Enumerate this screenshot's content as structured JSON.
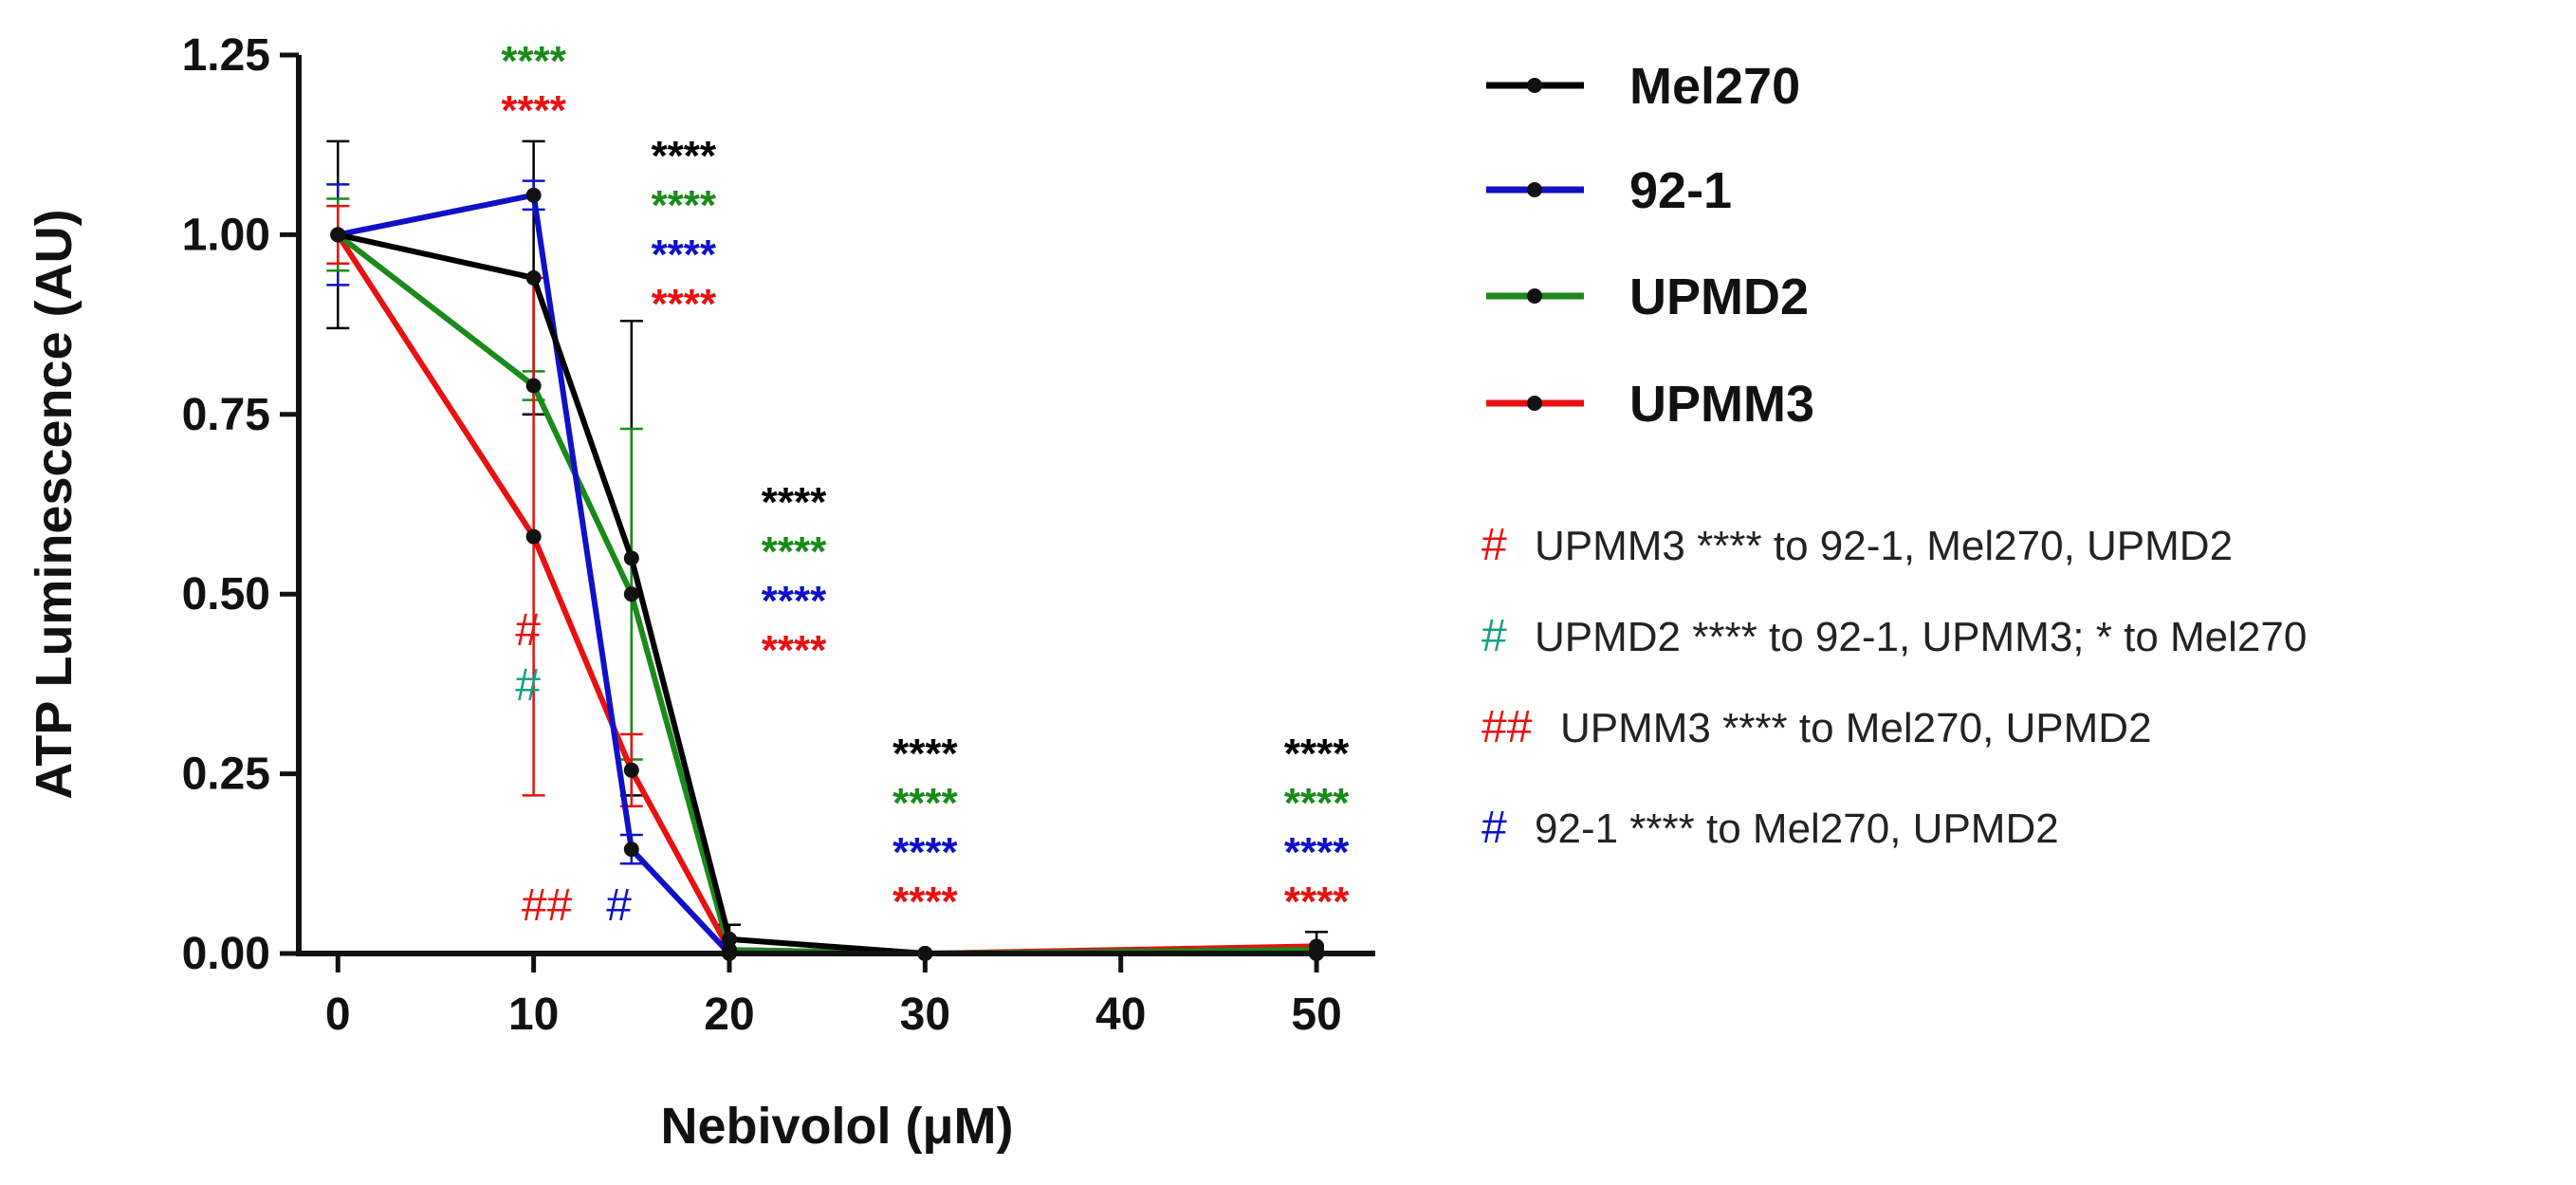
{
  "chart_data": {
    "type": "line",
    "xlabel": "Nebivolol (μM)",
    "ylabel": "ATP Luminescence (AU)",
    "x": [
      0,
      10,
      15,
      20,
      30,
      50
    ],
    "xticks": [
      0,
      10,
      20,
      30,
      40,
      50
    ],
    "yticks": [
      "0.00",
      "0.25",
      "0.50",
      "0.75",
      "1.00",
      "1.25"
    ],
    "xlim": [
      -2,
      53
    ],
    "ylim": [
      0,
      1.25
    ],
    "legend_position": "right",
    "series": [
      {
        "name": "Mel270",
        "color": "#000000",
        "values": [
          1.0,
          0.94,
          0.55,
          0.02,
          0.0,
          0.0
        ],
        "errors": [
          0.13,
          0.19,
          0.33,
          0.02,
          0.0,
          0.03
        ]
      },
      {
        "name": "92-1",
        "color": "#1010c8",
        "values": [
          1.0,
          1.055,
          0.145,
          0.0,
          0.0,
          0.0
        ],
        "errors": [
          0.07,
          0.02,
          0.02,
          0.0,
          0.0,
          0.0
        ]
      },
      {
        "name": "UPMD2",
        "color": "#1a8a1a",
        "values": [
          1.0,
          0.79,
          0.5,
          0.005,
          0.0,
          0.005
        ],
        "errors": [
          0.05,
          0.02,
          0.23,
          0.0,
          0.0,
          0.0
        ]
      },
      {
        "name": "UPMM3",
        "color": "#e81010",
        "values": [
          1.0,
          0.58,
          0.255,
          0.005,
          0.0,
          0.01
        ],
        "errors": [
          0.04,
          0.36,
          0.05,
          0.0,
          0.0,
          0.0
        ]
      }
    ],
    "significance": [
      {
        "x": 10,
        "stars": "****",
        "series": [
          "UPMD2",
          "UPMM3"
        ]
      },
      {
        "x": 15,
        "stars": "****",
        "series": [
          "Mel270",
          "UPMD2",
          "92-1",
          "UPMM3"
        ]
      },
      {
        "x": 20,
        "stars": "****",
        "series": [
          "Mel270",
          "UPMD2",
          "92-1",
          "UPMM3"
        ]
      },
      {
        "x": 30,
        "stars": "****",
        "series": [
          "Mel270",
          "UPMD2",
          "92-1",
          "UPMM3"
        ]
      },
      {
        "x": 50,
        "stars": "****",
        "series": [
          "Mel270",
          "UPMD2",
          "92-1",
          "UPMM3"
        ]
      }
    ],
    "hash_marks": [
      {
        "symbol": "#",
        "color": "#e81010"
      },
      {
        "symbol": "#",
        "color": "#17a085"
      },
      {
        "symbol": "##",
        "color": "#e81010"
      },
      {
        "symbol": "#",
        "color": "#1010c8"
      }
    ],
    "notes": [
      {
        "symbol": "#",
        "color": "#e81010",
        "text": "UPMM3 **** to 92-1, Mel270, UPMD2"
      },
      {
        "symbol": "#",
        "color": "#17a085",
        "text": "UPMD2 **** to 92-1, UPMM3; * to Mel270"
      },
      {
        "symbol": "##",
        "color": "#e81010",
        "text": "UPMM3 **** to Mel270, UPMD2"
      },
      {
        "symbol": "#",
        "color": "#1010c8",
        "text": "92-1 **** to Mel270, UPMD2"
      }
    ]
  }
}
